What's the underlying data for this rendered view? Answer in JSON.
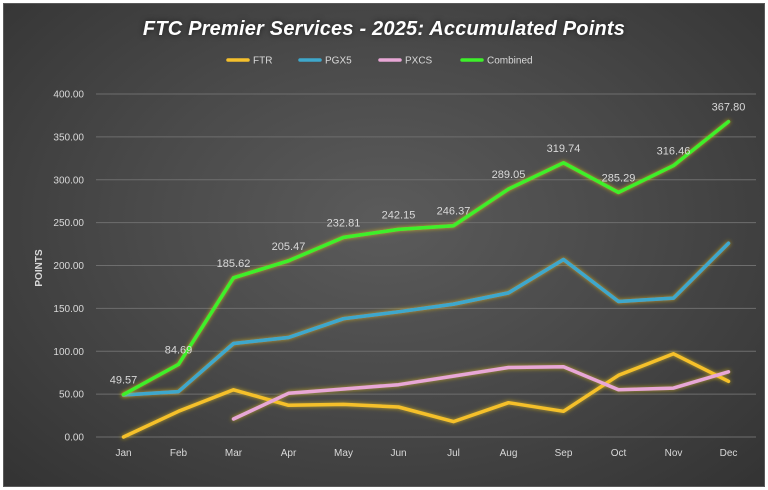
{
  "chart_data": {
    "type": "line",
    "title": "FTC Premier Services - 2025: Accumulated Points",
    "xlabel": "",
    "ylabel": "POINTS",
    "ylim": [
      0,
      400
    ],
    "yticks": [
      "0.00",
      "50.00",
      "100.00",
      "150.00",
      "200.00",
      "250.00",
      "300.00",
      "350.00",
      "400.00"
    ],
    "grid": true,
    "legend_position": "top",
    "categories": [
      "Jan",
      "Feb",
      "Mar",
      "Apr",
      "May",
      "Jun",
      "Jul",
      "Aug",
      "Sep",
      "Oct",
      "Nov",
      "Dec"
    ],
    "series": [
      {
        "name": "FTR",
        "color": "#f5c02c",
        "values": [
          0,
          30,
          55,
          37,
          38,
          35,
          18,
          40,
          30,
          72,
          97,
          65
        ]
      },
      {
        "name": "PGX5",
        "color": "#3ea8cc",
        "values": [
          49,
          53,
          109,
          116,
          138,
          146,
          155,
          168,
          207,
          158,
          162,
          226
        ]
      },
      {
        "name": "PXCS",
        "color": "#e8a7d6",
        "values": [
          null,
          null,
          21,
          51,
          56,
          61,
          71,
          81,
          82,
          55,
          57,
          76
        ]
      },
      {
        "name": "Combined",
        "color": "#3df02a",
        "values": [
          49.57,
          84.69,
          185.62,
          205.47,
          232.81,
          242.15,
          246.37,
          289.05,
          319.74,
          285.29,
          316.46,
          367.8
        ],
        "data_labels": [
          "49.57",
          "84.69",
          "185.62",
          "205.47",
          "232.81",
          "242.15",
          "246.37",
          "289.05",
          "319.74",
          "285.29",
          "316.46",
          "367.80"
        ]
      }
    ]
  }
}
